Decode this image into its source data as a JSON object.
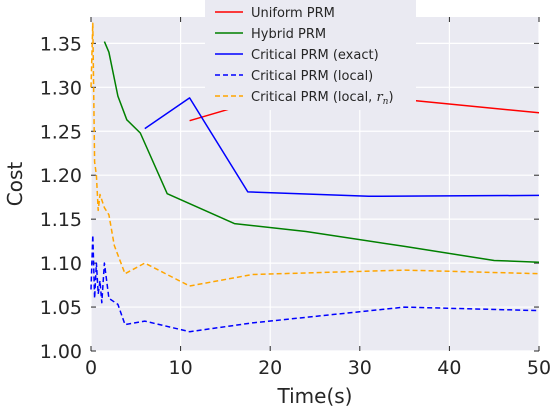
{
  "chart_data": {
    "type": "line",
    "title": "",
    "xlabel": "Time(s)",
    "ylabel": "Cost",
    "xlim": [
      0,
      50
    ],
    "ylim": [
      1.0,
      1.38
    ],
    "xticks": [
      0,
      10,
      20,
      30,
      40,
      50
    ],
    "xtick_labels": [
      "0",
      "10",
      "20",
      "30",
      "40",
      "50"
    ],
    "yticks": [
      1.0,
      1.05,
      1.1,
      1.15,
      1.2,
      1.25,
      1.3,
      1.35
    ],
    "ytick_labels": [
      "1.00",
      "1.05",
      "1.10",
      "1.15",
      "1.20",
      "1.25",
      "1.30",
      "1.35"
    ],
    "grid": true,
    "background": "#eaeaf2",
    "legend_position": "top-center",
    "series": [
      {
        "name": "Uniform PRM",
        "legend_label": "Uniform PRM",
        "color": "#ff0000",
        "dash": "solid",
        "x": [
          11.0,
          18.0,
          35.0,
          50.0
        ],
        "y": [
          1.262,
          1.283,
          1.286,
          1.271
        ]
      },
      {
        "name": "Hybrid PRM",
        "legend_label": "Hybrid PRM",
        "color": "#008000",
        "dash": "solid",
        "x": [
          1.5,
          2.0,
          3.0,
          4.0,
          5.5,
          8.5,
          16.0,
          24.0,
          35.0,
          45.0,
          50.0
        ],
        "y": [
          1.352,
          1.34,
          1.29,
          1.263,
          1.248,
          1.179,
          1.145,
          1.136,
          1.119,
          1.103,
          1.101
        ]
      },
      {
        "name": "Critical PRM (exact)",
        "legend_label": "Critical PRM (exact)",
        "color": "#0000ff",
        "dash": "solid",
        "x": [
          6.0,
          11.0,
          17.5,
          31.0,
          50.0
        ],
        "y": [
          1.253,
          1.288,
          1.181,
          1.176,
          1.177
        ]
      },
      {
        "name": "Critical PRM (local)",
        "legend_label": "Critical PRM (local)",
        "color": "#0000ff",
        "dash": "dashed",
        "x": [
          0.0,
          0.2,
          0.4,
          0.6,
          0.8,
          1.0,
          1.2,
          1.5,
          2.0,
          3.0,
          3.8,
          6.0,
          11.0,
          18.0,
          35.0,
          50.0
        ],
        "y": [
          1.07,
          1.132,
          1.06,
          1.1,
          1.065,
          1.08,
          1.055,
          1.1,
          1.06,
          1.053,
          1.03,
          1.034,
          1.022,
          1.032,
          1.05,
          1.046
        ]
      },
      {
        "name": "Critical PRM (local, r_n)",
        "legend_label": "Critical PRM (local, ",
        "legend_math": "r",
        "legend_sub": "n",
        "legend_close": ")",
        "color": "#ffa500",
        "dash": "dashed",
        "x": [
          0.0,
          0.2,
          0.4,
          0.6,
          0.8,
          1.0,
          1.5,
          2.0,
          2.6,
          3.8,
          6.0,
          11.0,
          18.0,
          35.0,
          50.0
        ],
        "y": [
          1.3,
          1.373,
          1.215,
          1.2,
          1.16,
          1.178,
          1.163,
          1.155,
          1.12,
          1.088,
          1.1,
          1.074,
          1.087,
          1.092,
          1.088
        ]
      }
    ]
  }
}
